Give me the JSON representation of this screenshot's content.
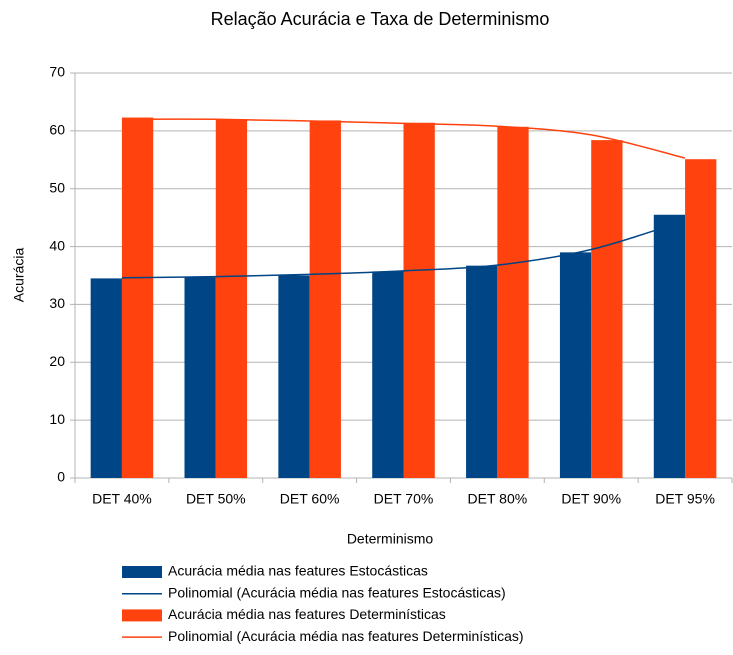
{
  "chart_data": {
    "type": "bar",
    "title": "Relação Acurácia e Taxa de Determinismo",
    "x_label": "Determinismo",
    "y_label": "Acurácia",
    "categories": [
      "DET 40%",
      "DET 50%",
      "DET 60%",
      "DET 70%",
      "DET 80%",
      "DET 90%",
      "DET 95%"
    ],
    "series": [
      {
        "name": "Acurácia média nas features Estocásticas",
        "type": "bar",
        "color": "#004586",
        "values": [
          34.5,
          34.7,
          35,
          35.7,
          36.7,
          39,
          45.5
        ]
      },
      {
        "name": "Polinomial (Acurácia média nas features Estocásticas)",
        "type": "line",
        "color": "#004586",
        "values": [
          34.6,
          34.8,
          35.2,
          35.8,
          36.8,
          39.5,
          44.5
        ]
      },
      {
        "name": "Acurácia média nas features Determinísticas",
        "type": "bar",
        "color": "#ff420e",
        "values": [
          62.3,
          62,
          61.8,
          61.4,
          60.7,
          58.4,
          55.1
        ]
      },
      {
        "name": "Polinomial (Acurácia média nas features Determinísticas)",
        "type": "line",
        "color": "#ff420e",
        "values": [
          62,
          62,
          61.7,
          61.3,
          60.8,
          59.3,
          55.3
        ]
      }
    ],
    "ylim": [
      0,
      70
    ],
    "yticks": [
      0,
      10,
      20,
      30,
      40,
      50,
      60,
      70
    ],
    "grid": true
  }
}
